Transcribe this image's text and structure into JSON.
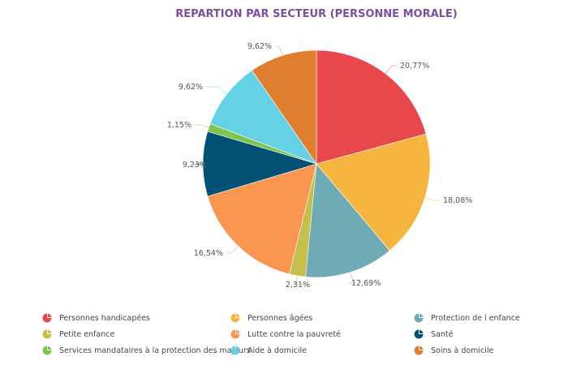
{
  "chart_data": {
    "type": "pie",
    "title": "REPARTION PAR SECTEUR (PERSONNE MORALE)",
    "start_angle": "top",
    "direction": "clockwise",
    "legend_position": "bottom",
    "slices": [
      {
        "name": "Personnes handicapées",
        "value": 20.77,
        "label": "20,77%",
        "color": "#e8474c"
      },
      {
        "name": "Personnes âgées",
        "value": 18.08,
        "label": "18,08%",
        "color": "#f6b53f"
      },
      {
        "name": "Protection de l enfance",
        "value": 12.69,
        "label": "12,69%",
        "color": "#6fabb4"
      },
      {
        "name": "Petite enfance",
        "value": 2.31,
        "label": "2,31%",
        "color": "#c6bf4b"
      },
      {
        "name": "Lutte contre la pauvreté",
        "value": 16.54,
        "label": "16,54%",
        "color": "#fb9651"
      },
      {
        "name": "Santé",
        "value": 9.23,
        "label": "9,23%",
        "color": "#005174"
      },
      {
        "name": "Services mandataires à la protection des majeurs",
        "value": 1.15,
        "label": "1,15%",
        "color": "#7ec54f"
      },
      {
        "name": "Aide à domicile",
        "value": 9.62,
        "label": "9,62%",
        "color": "#64d1e5"
      },
      {
        "name": "Soins à domicile",
        "value": 9.62,
        "label": "9,62%",
        "color": "#e07e30"
      }
    ],
    "legend_order": [
      0,
      1,
      2,
      3,
      4,
      5,
      6,
      7,
      8
    ]
  },
  "title_color": "#7b4f9d"
}
